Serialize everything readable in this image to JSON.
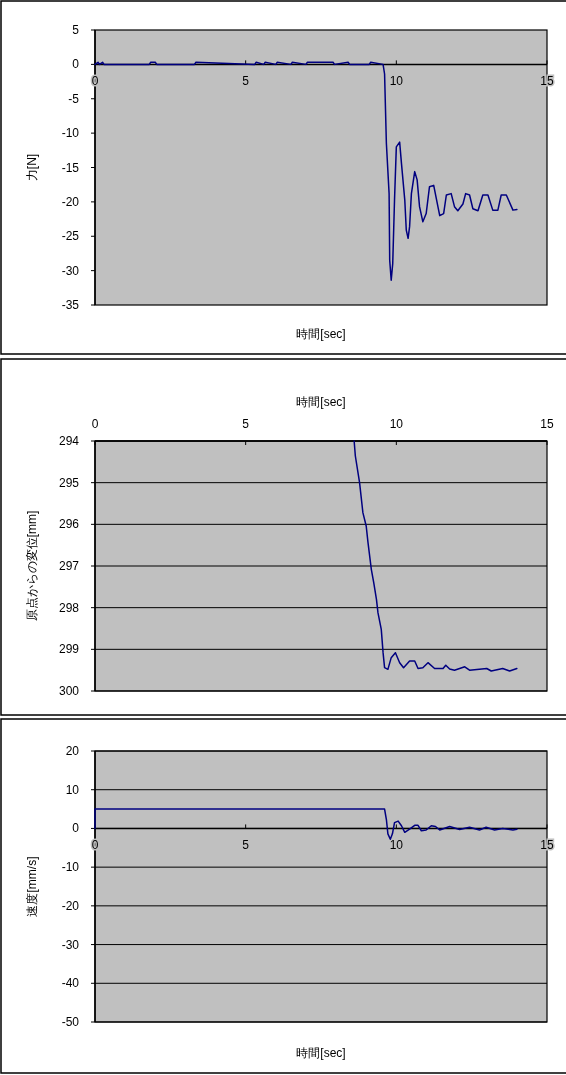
{
  "chart_data": [
    {
      "type": "line",
      "xlabel": "時間[sec]",
      "ylabel": "力[N]",
      "color": "#000080",
      "grid": false,
      "xlim": [
        0,
        15
      ],
      "xticks": [
        0,
        5,
        10,
        15
      ],
      "ylim": [
        -35,
        5
      ],
      "yticks": [
        -35,
        -30,
        -25,
        -20,
        -15,
        -10,
        -5,
        0,
        5
      ],
      "x": [
        0,
        0.1,
        0.15,
        0.25,
        0.3,
        1.8,
        1.85,
        2.0,
        2.05,
        3.3,
        3.35,
        5.3,
        5.35,
        5.6,
        5.65,
        6.0,
        6.05,
        6.5,
        6.55,
        7.0,
        7.05,
        7.9,
        7.95,
        8.4,
        8.45,
        9.1,
        9.15,
        9.56,
        9.61,
        9.67,
        9.76,
        9.78,
        9.83,
        9.88,
        9.94,
        10.0,
        10.11,
        10.17,
        10.28,
        10.33,
        10.39,
        10.44,
        10.5,
        10.61,
        10.69,
        10.77,
        10.88,
        10.99,
        11.1,
        11.24,
        11.38,
        11.44,
        11.57,
        11.66,
        11.82,
        11.93,
        12.04,
        12.21,
        12.3,
        12.43,
        12.54,
        12.71,
        12.87,
        13.04,
        13.2,
        13.37,
        13.48,
        13.65,
        13.87,
        14.0
      ],
      "values": [
        0,
        0.3,
        0,
        0.3,
        0,
        0,
        0.3,
        0.3,
        0,
        0,
        0.3,
        0,
        0.3,
        0,
        0.3,
        0,
        0.3,
        0,
        0.3,
        0,
        0.3,
        0.3,
        0,
        0.3,
        0,
        0,
        0.3,
        0,
        -1.4,
        -11.5,
        -18.8,
        -28.5,
        -31.4,
        -29,
        -19.7,
        -12,
        -11.3,
        -14.4,
        -19.7,
        -24.1,
        -25.3,
        -23.6,
        -18.8,
        -15.6,
        -16.8,
        -20.7,
        -22.9,
        -21.7,
        -17.8,
        -17.6,
        -20.7,
        -22,
        -21.7,
        -19,
        -18.8,
        -20.7,
        -21.3,
        -20.3,
        -18.8,
        -19,
        -21,
        -21.3,
        -19,
        -19,
        -21.2,
        -21.2,
        -19,
        -19,
        -21.2,
        -21.1
      ]
    },
    {
      "type": "line",
      "xlabel": "時間[sec]",
      "ylabel": "原点からの変位[mm]",
      "color": "#000080",
      "grid": "y",
      "xlim": [
        0,
        15
      ],
      "xticks": [
        0,
        5,
        10,
        15
      ],
      "ylim": [
        300,
        294
      ],
      "yticks": [
        294,
        295,
        296,
        297,
        298,
        299,
        300
      ],
      "x": [
        8.6,
        8.64,
        8.78,
        8.89,
        9.0,
        9.06,
        9.17,
        9.25,
        9.34,
        9.39,
        9.5,
        9.56,
        9.61,
        9.72,
        9.83,
        9.97,
        10.11,
        10.24,
        10.44,
        10.61,
        10.72,
        10.88,
        11.05,
        11.27,
        11.55,
        11.64,
        11.77,
        11.93,
        12.27,
        12.43,
        13.0,
        13.15,
        13.53,
        13.76,
        14.0
      ],
      "values": [
        294,
        294.36,
        295,
        295.72,
        296.04,
        296.44,
        297.08,
        297.4,
        297.8,
        298.12,
        298.52,
        299.08,
        299.44,
        299.48,
        299.2,
        299.08,
        299.32,
        299.44,
        299.28,
        299.28,
        299.46,
        299.44,
        299.32,
        299.46,
        299.46,
        299.38,
        299.47,
        299.5,
        299.42,
        299.5,
        299.46,
        299.52,
        299.46,
        299.52,
        299.46
      ]
    },
    {
      "type": "line",
      "xlabel": "時間[sec]",
      "ylabel": "速度[mm/s]",
      "color": "#000080",
      "grid": "y",
      "xlim": [
        0,
        15
      ],
      "xticks": [
        0,
        5,
        10,
        15
      ],
      "ylim": [
        -50,
        20
      ],
      "yticks": [
        -50,
        -40,
        -30,
        -20,
        -10,
        0,
        10,
        20
      ],
      "x": [
        0,
        0,
        9.61,
        9.67,
        9.72,
        9.8,
        9.87,
        9.94,
        10.06,
        10.17,
        10.28,
        10.44,
        10.61,
        10.72,
        10.83,
        10.99,
        11.16,
        11.3,
        11.44,
        11.77,
        12.1,
        12.43,
        12.76,
        12.98,
        13.26,
        13.53,
        13.87,
        14.0
      ],
      "values": [
        0,
        5,
        5,
        2.3,
        -1.4,
        -2.8,
        -1.4,
        1.5,
        1.9,
        0.7,
        -1,
        -0.2,
        0.8,
        0.8,
        -0.6,
        -0.4,
        0.7,
        0.5,
        -0.4,
        0.5,
        -0.3,
        0.3,
        -0.4,
        0.3,
        -0.4,
        0,
        -0.4,
        -0.2
      ]
    }
  ]
}
